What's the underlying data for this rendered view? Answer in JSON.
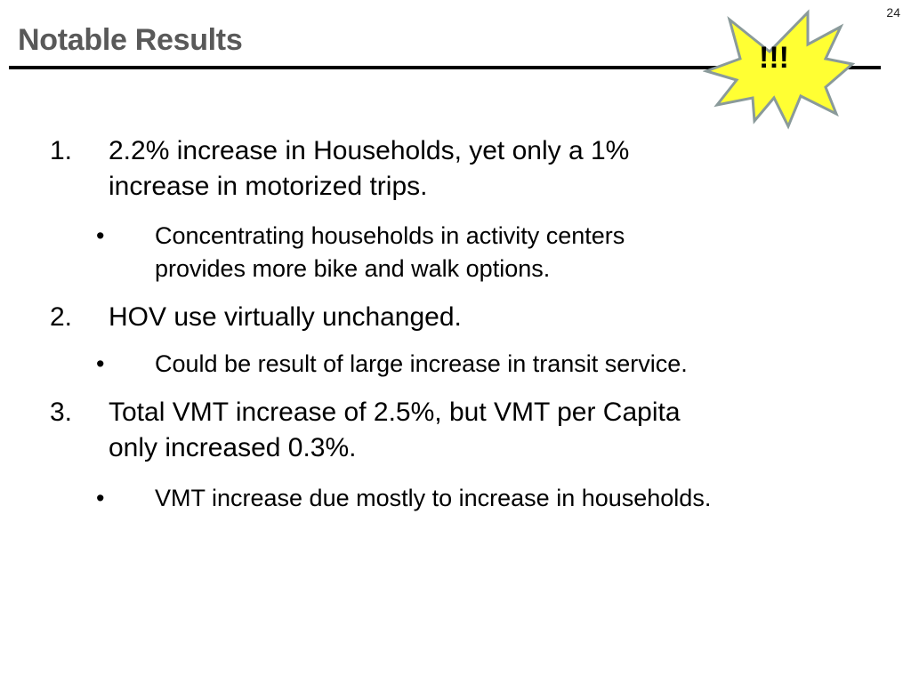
{
  "slide": {
    "page_number": "24",
    "title": "Notable Results",
    "burst": {
      "label": "!!!",
      "fill_color": "#ffff33",
      "stroke_color": "#8a9a9a"
    }
  },
  "items": [
    {
      "number": "1.",
      "text_lines": [
        "2.2% increase in Households, yet only a 1%",
        "increase in motorized trips."
      ],
      "sub": {
        "bullet": "•",
        "text_lines": [
          "Concentrating households in activity centers",
          "provides more bike and walk options."
        ]
      }
    },
    {
      "number": "2.",
      "text_lines": [
        "HOV use virtually unchanged."
      ],
      "sub": {
        "bullet": "•",
        "text_lines": [
          "Could be result of large increase in transit service."
        ]
      }
    },
    {
      "number": "3.",
      "text_lines": [
        "Total VMT increase of 2.5%, but VMT per Capita",
        "only increased 0.3%."
      ],
      "sub": {
        "bullet": "•",
        "text_lines": [
          "VMT increase due mostly to increase in households."
        ]
      }
    }
  ]
}
